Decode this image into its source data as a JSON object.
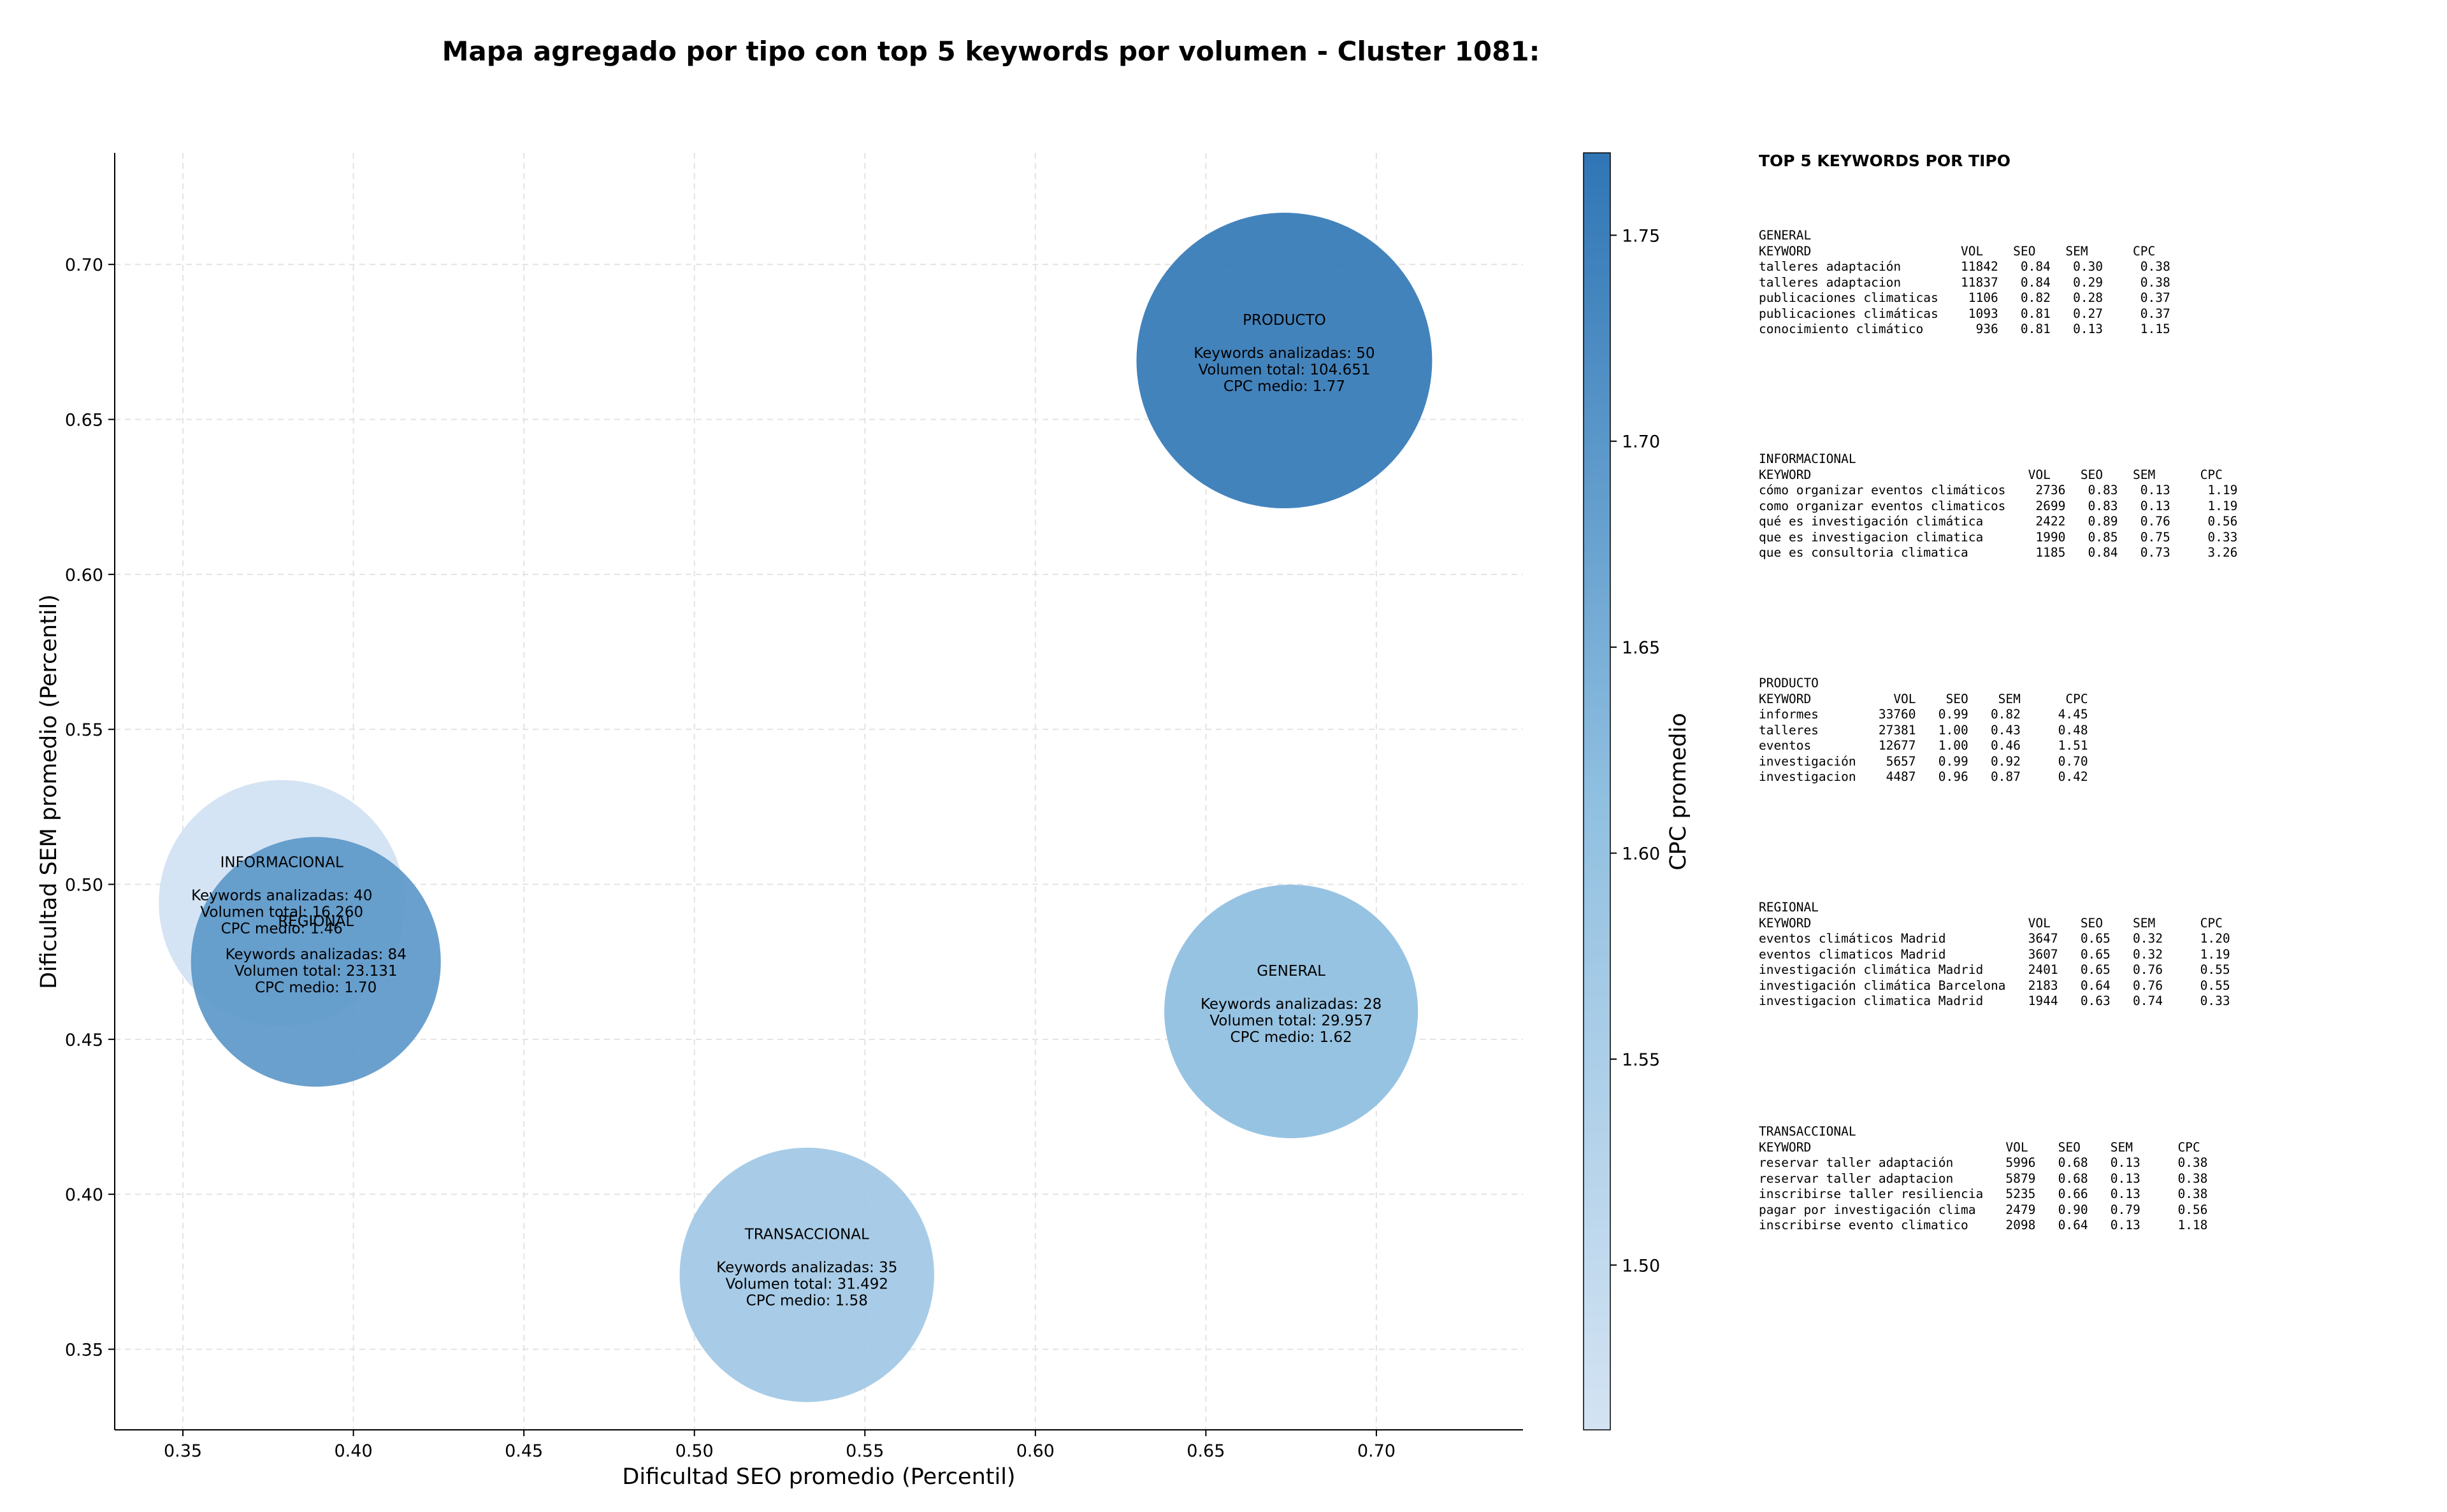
{
  "chart_data": {
    "type": "scatter",
    "title": "Mapa agregado por tipo con top 5 keywords por volumen - Cluster 1081:",
    "xlabel": "Dificultad SEO promedio (Percentil)",
    "ylabel": "Dificultad SEM promedio (Percentil)",
    "xlim": [
      0.33,
      0.743
    ],
    "ylim": [
      0.324,
      0.736
    ],
    "xticks": [
      "0.35",
      "0.40",
      "0.45",
      "0.50",
      "0.55",
      "0.60",
      "0.65",
      "0.70"
    ],
    "yticks": [
      "0.35",
      "0.40",
      "0.45",
      "0.50",
      "0.55",
      "0.60",
      "0.65",
      "0.70"
    ],
    "grid": true,
    "colorbar": {
      "label": "CPC promedio",
      "min": 1.46,
      "max": 1.77,
      "ticks": [
        "1.50",
        "1.55",
        "1.60",
        "1.65",
        "1.70",
        "1.75"
      ],
      "color_low": "#d3e3f3",
      "color_high": "#2f75b5"
    },
    "bubbles": [
      {
        "name": "INFORMACIONAL",
        "x": 0.379,
        "y": 0.494,
        "keywords": 40,
        "volume": 16260,
        "cpc": 1.46,
        "lines": [
          "INFORMACIONAL",
          "",
          "Keywords analizadas: 40",
          "Volumen total: 16.260",
          "CPC medio: 1.46"
        ]
      },
      {
        "name": "REGIONAL",
        "x": 0.389,
        "y": 0.475,
        "keywords": 84,
        "volume": 23131,
        "cpc": 1.7,
        "lines": [
          "REGIONAL",
          "",
          "Keywords analizadas: 84",
          "Volumen total: 23.131",
          "CPC medio: 1.70"
        ]
      },
      {
        "name": "PRODUCTO",
        "x": 0.673,
        "y": 0.669,
        "keywords": 50,
        "volume": 104651,
        "cpc": 1.77,
        "lines": [
          "PRODUCTO",
          "",
          "Keywords analizadas: 50",
          "Volumen total: 104.651",
          "CPC medio: 1.77"
        ]
      },
      {
        "name": "GENERAL",
        "x": 0.675,
        "y": 0.459,
        "keywords": 28,
        "volume": 29957,
        "cpc": 1.62,
        "lines": [
          "GENERAL",
          "",
          "Keywords analizadas: 28",
          "Volumen total: 29.957",
          "CPC medio: 1.62"
        ]
      },
      {
        "name": "TRANSACCIONAL",
        "x": 0.533,
        "y": 0.374,
        "keywords": 35,
        "volume": 31492,
        "cpc": 1.58,
        "lines": [
          "TRANSACCIONAL",
          "",
          "Keywords analizadas: 35",
          "Volumen total: 31.492",
          "CPC medio: 1.58"
        ]
      }
    ]
  },
  "side_panel": {
    "title": "TOP 5 KEYWORDS POR TIPO",
    "blocks": [
      {
        "name": "GENERAL",
        "text": "GENERAL\nKEYWORD                    VOL    SEO    SEM      CPC\ntalleres adaptación        11842   0.84   0.30     0.38\ntalleres adaptacion        11837   0.84   0.29     0.38\npublicaciones climaticas    1106   0.82   0.28     0.37\npublicaciones climáticas    1093   0.81   0.27     0.37\nconocimiento climático       936   0.81   0.13     1.15"
      },
      {
        "name": "INFORMACIONAL",
        "text": "INFORMACIONAL\nKEYWORD                             VOL    SEO    SEM      CPC\ncómo organizar eventos climáticos    2736   0.83   0.13     1.19\ncomo organizar eventos climaticos    2699   0.83   0.13     1.19\nqué es investigación climática       2422   0.89   0.76     0.56\nque es investigacion climatica       1990   0.85   0.75     0.33\nque es consultoria climatica         1185   0.84   0.73     3.26"
      },
      {
        "name": "PRODUCTO",
        "text": "PRODUCTO\nKEYWORD           VOL    SEO    SEM      CPC\ninformes        33760   0.99   0.82     4.45\ntalleres        27381   1.00   0.43     0.48\neventos         12677   1.00   0.46     1.51\ninvestigación    5657   0.99   0.92     0.70\ninvestigacion    4487   0.96   0.87     0.42"
      },
      {
        "name": "REGIONAL",
        "text": "REGIONAL\nKEYWORD                             VOL    SEO    SEM      CPC\neventos climáticos Madrid           3647   0.65   0.32     1.20\neventos climaticos Madrid           3607   0.65   0.32     1.19\ninvestigación climática Madrid      2401   0.65   0.76     0.55\ninvestigación climática Barcelona   2183   0.64   0.76     0.55\ninvestigacion climatica Madrid      1944   0.63   0.74     0.33"
      },
      {
        "name": "TRANSACCIONAL",
        "text": "TRANSACCIONAL\nKEYWORD                          VOL    SEO    SEM      CPC\nreservar taller adaptación       5996   0.68   0.13     0.38\nreservar taller adaptacion       5879   0.68   0.13     0.38\ninscribirse taller resiliencia   5235   0.66   0.13     0.38\npagar por investigación clima    2479   0.90   0.79     0.56\ninscribirse evento climatico     2098   0.64   0.13     1.18"
      }
    ]
  }
}
